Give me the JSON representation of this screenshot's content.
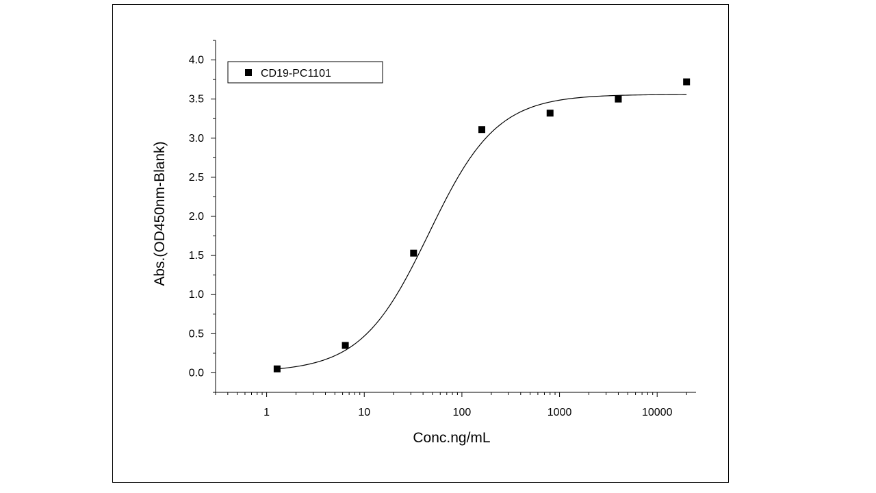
{
  "chart_data": {
    "type": "scatter",
    "xscale": "log",
    "xlabel": "Conc.ng/mL",
    "ylabel": "Abs.(OD450nm-Blank)",
    "xlim": [
      0.3,
      25000
    ],
    "ylim": [
      -0.25,
      4.25
    ],
    "xticks": [
      1,
      10,
      100,
      1000,
      10000
    ],
    "xtick_labels": [
      "1",
      "10",
      "100",
      "1000",
      "10000"
    ],
    "yticks": [
      0.0,
      0.5,
      1.0,
      1.5,
      2.0,
      2.5,
      3.0,
      3.5,
      4.0
    ],
    "ytick_labels": [
      "0.0",
      "0.5",
      "1.0",
      "1.5",
      "2.0",
      "2.5",
      "3.0",
      "3.5",
      "4.0"
    ],
    "grid": false,
    "legend_position": "top-left",
    "series": [
      {
        "name": "CD19-PC1101",
        "marker": "square",
        "color": "#000000",
        "x": [
          1.28,
          6.4,
          32,
          160,
          800,
          4000,
          20000
        ],
        "y": [
          0.05,
          0.35,
          1.53,
          3.11,
          3.32,
          3.5,
          3.72
        ]
      }
    ],
    "fit_curve": {
      "model": "4PL",
      "bottom": 0.01,
      "top": 3.56,
      "ec50": 46,
      "hill": 1.25,
      "x_range": [
        1.28,
        20000
      ],
      "color": "#000000"
    }
  }
}
